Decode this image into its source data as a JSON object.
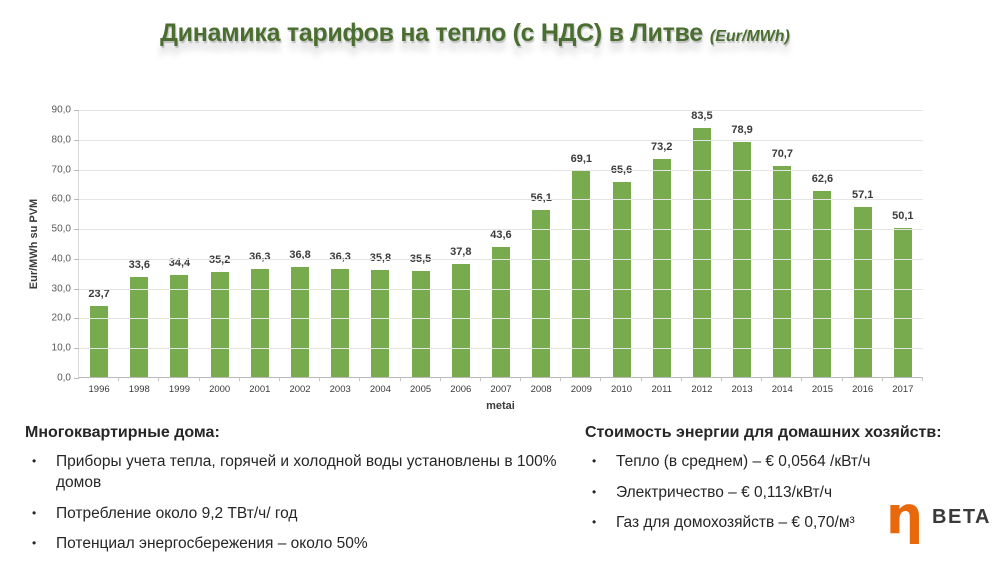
{
  "title": {
    "main": "Динамика тарифов на тепло (с НДС) в Литве",
    "suffix": "(Eur/MWh)"
  },
  "chart_data": {
    "type": "bar",
    "categories": [
      "1996",
      "1998",
      "1999",
      "2000",
      "2001",
      "2002",
      "2003",
      "2004",
      "2005",
      "2006",
      "2007",
      "2008",
      "2009",
      "2010",
      "2011",
      "2012",
      "2013",
      "2014",
      "2015",
      "2016",
      "2017"
    ],
    "values": [
      23.7,
      33.6,
      34.4,
      35.2,
      36.3,
      36.8,
      36.3,
      35.8,
      35.5,
      37.8,
      43.6,
      56.1,
      69.1,
      65.6,
      73.2,
      83.5,
      78.9,
      70.7,
      62.6,
      57.1,
      50.1
    ],
    "value_labels": [
      "23,7",
      "33,6",
      "34,4",
      "35,2",
      "36,3",
      "36,8",
      "36,3",
      "35,8",
      "35,5",
      "37,8",
      "43,6",
      "56,1",
      "69,1",
      "65,6",
      "73,2",
      "83,5",
      "78,9",
      "70,7",
      "62,6",
      "57,1",
      "50,1"
    ],
    "ylabel": "Eur/MWh su PVM",
    "xlabel": "metai",
    "ylim": [
      0,
      90
    ],
    "ytick_step": 10,
    "ytick_labels": [
      "0,0",
      "10,0",
      "20,0",
      "30,0",
      "40,0",
      "50,0",
      "60,0",
      "70,0",
      "80,0",
      "90,0"
    ],
    "grid": true,
    "legend": "none",
    "bar_color": "#77ab4d"
  },
  "left_panel": {
    "heading": "Многоквартирные дома:",
    "bullets": [
      "Приборы учета тепла, горячей и холодной воды установлены в 100% домов",
      "Потребление около 9,2 ТВт/ч/ год",
      "Потенциал энергосбережения – около 50%"
    ]
  },
  "right_panel": {
    "heading": "Стоимость энергии для домашних хозяйств:",
    "bullets": [
      "Тепло (в среднем) – € 0,0564 /кВт/ч",
      "Электричество – € 0,113/кВт/ч",
      "Газ для домохозяйств – € 0,70/м³"
    ]
  },
  "logo": {
    "symbol": "η",
    "text": "BETA",
    "symbol_color": "#e8690b"
  },
  "colors": {
    "title": "#4a6e2f",
    "bar": "#77ab4d",
    "grid": "#e5e5e5",
    "axis_text": "#595959"
  }
}
